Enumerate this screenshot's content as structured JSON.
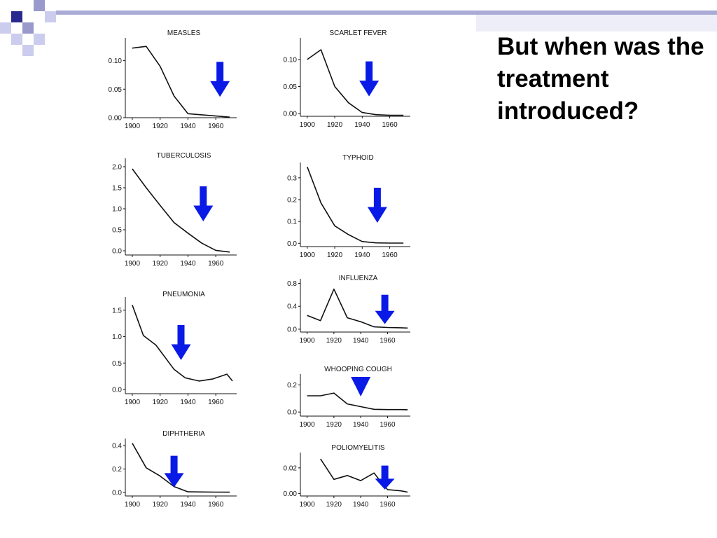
{
  "slide": {
    "heading": "But when was the treatment introduced?",
    "colors": {
      "decor_dark": "#2a2a8e",
      "decor_mid": "#9999cc",
      "decor_light": "#ccccee",
      "arrow": "#0a1ae6",
      "line": "#111111"
    }
  },
  "chart_data": [
    {
      "type": "line",
      "title": "MEASLES",
      "x": [
        1900,
        1910,
        1920,
        1930,
        1940,
        1950,
        1960,
        1970
      ],
      "series": [
        {
          "values": [
            0.122,
            0.125,
            0.09,
            0.038,
            0.007,
            0.005,
            0.003,
            0.001
          ]
        }
      ],
      "xlim": [
        1895,
        1975
      ],
      "ylim": [
        0,
        0.14
      ],
      "xticks": [
        1900,
        1920,
        1940,
        1960
      ],
      "xtick_labels": [
        "1900",
        "1920",
        "1940",
        "1960"
      ],
      "yticks": [
        0,
        0.05,
        0.1
      ],
      "ytick_labels": [
        "0.00",
        "0.05",
        "0.10"
      ],
      "arrow_year": 1963,
      "arrow_style": "arrow"
    },
    {
      "type": "line",
      "title": "SCARLET FEVER",
      "x": [
        1900,
        1910,
        1920,
        1930,
        1940,
        1950,
        1960,
        1970
      ],
      "series": [
        {
          "values": [
            0.1,
            0.118,
            0.05,
            0.02,
            0.002,
            -0.002,
            -0.003,
            -0.003
          ]
        }
      ],
      "xlim": [
        1895,
        1975
      ],
      "ylim": [
        -0.005,
        0.14
      ],
      "xticks": [
        1900,
        1920,
        1940,
        1960
      ],
      "xtick_labels": [
        "1900",
        "1920",
        "1940",
        "1960"
      ],
      "yticks": [
        0,
        0.05,
        0.1
      ],
      "ytick_labels": [
        "0.00",
        "0.05",
        "0.10"
      ],
      "arrow_year": 1945,
      "arrow_style": "arrow"
    },
    {
      "type": "line",
      "title": "TUBERCULOSIS",
      "x": [
        1900,
        1910,
        1920,
        1930,
        1940,
        1950,
        1960,
        1970
      ],
      "series": [
        {
          "values": [
            1.95,
            1.5,
            1.08,
            0.67,
            0.42,
            0.18,
            0.01,
            -0.03
          ]
        }
      ],
      "xlim": [
        1895,
        1975
      ],
      "ylim": [
        -0.1,
        2.2
      ],
      "xticks": [
        1900,
        1920,
        1940,
        1960
      ],
      "xtick_labels": [
        "1900",
        "1920",
        "1940",
        "1960"
      ],
      "yticks": [
        0,
        0.5,
        1.0,
        1.5,
        2.0
      ],
      "ytick_labels": [
        "0.0",
        "0.5",
        "1.0",
        "1.5",
        "2.0"
      ],
      "arrow_year": 1951,
      "arrow_style": "arrow"
    },
    {
      "type": "line",
      "title": "TYPHOID",
      "x": [
        1900,
        1910,
        1920,
        1930,
        1940,
        1950,
        1960,
        1970
      ],
      "series": [
        {
          "values": [
            0.35,
            0.185,
            0.08,
            0.04,
            0.008,
            0.002,
            0.001,
            0.001
          ]
        }
      ],
      "xlim": [
        1895,
        1975
      ],
      "ylim": [
        -0.015,
        0.37
      ],
      "xticks": [
        1900,
        1920,
        1940,
        1960
      ],
      "xtick_labels": [
        "1900",
        "1920",
        "1940",
        "1960"
      ],
      "yticks": [
        0,
        0.1,
        0.2,
        0.3
      ],
      "ytick_labels": [
        "0.0",
        "0.1",
        "0.2",
        "0.3"
      ],
      "arrow_year": 1951,
      "arrow_style": "arrow"
    },
    {
      "type": "line",
      "title": "INFLUENZA",
      "x": [
        1900,
        1910,
        1920,
        1930,
        1940,
        1950,
        1960,
        1970,
        1975
      ],
      "series": [
        {
          "values": [
            0.24,
            0.15,
            0.7,
            0.2,
            0.13,
            0.04,
            0.03,
            0.025,
            0.02
          ]
        }
      ],
      "xlim": [
        1895,
        1977
      ],
      "ylim": [
        -0.05,
        0.88
      ],
      "xticks": [
        1900,
        1920,
        1940,
        1960
      ],
      "xtick_labels": [
        "1900",
        "1920",
        "1940",
        "1960"
      ],
      "yticks": [
        0,
        0.4,
        0.8
      ],
      "ytick_labels": [
        "0.0",
        "0.4",
        "0.8"
      ],
      "arrow_year": 1958,
      "arrow_style": "arrow"
    },
    {
      "type": "line",
      "title": "PNEUMONIA",
      "x": [
        1900,
        1908,
        1917,
        1930,
        1938,
        1948,
        1958,
        1968,
        1972
      ],
      "series": [
        {
          "values": [
            1.6,
            1.02,
            0.84,
            0.38,
            0.22,
            0.16,
            0.2,
            0.29,
            0.16
          ]
        }
      ],
      "xlim": [
        1895,
        1975
      ],
      "ylim": [
        -0.08,
        1.75
      ],
      "xticks": [
        1900,
        1920,
        1940,
        1960
      ],
      "xtick_labels": [
        "1900",
        "1920",
        "1940",
        "1960"
      ],
      "yticks": [
        0,
        0.5,
        1.0,
        1.5
      ],
      "ytick_labels": [
        "0.0",
        "0.5",
        "1.0",
        "1.5"
      ],
      "arrow_year": 1935,
      "arrow_style": "arrow"
    },
    {
      "type": "line",
      "title": "WHOOPING COUGH",
      "x": [
        1900,
        1910,
        1920,
        1930,
        1940,
        1950,
        1960,
        1970,
        1975
      ],
      "series": [
        {
          "values": [
            0.12,
            0.12,
            0.14,
            0.06,
            0.04,
            0.02,
            0.018,
            0.018,
            0.017
          ]
        }
      ],
      "xlim": [
        1895,
        1977
      ],
      "ylim": [
        -0.03,
        0.28
      ],
      "xticks": [
        1900,
        1920,
        1940,
        1960
      ],
      "xtick_labels": [
        "1900",
        "1920",
        "1940",
        "1960"
      ],
      "yticks": [
        0,
        0.2
      ],
      "ytick_labels": [
        "0.0",
        "0.2"
      ],
      "arrow_year": 1940,
      "arrow_style": "triangle"
    },
    {
      "type": "line",
      "title": "DIPHTHERIA",
      "x": [
        1900,
        1910,
        1920,
        1930,
        1940,
        1950,
        1960,
        1970
      ],
      "series": [
        {
          "values": [
            0.42,
            0.21,
            0.14,
            0.05,
            0.005,
            0.004,
            0.003,
            0.002
          ]
        }
      ],
      "xlim": [
        1895,
        1975
      ],
      "ylim": [
        -0.03,
        0.46
      ],
      "xticks": [
        1900,
        1920,
        1940,
        1960
      ],
      "xtick_labels": [
        "1900",
        "1920",
        "1940",
        "1960"
      ],
      "yticks": [
        0,
        0.2,
        0.4
      ],
      "ytick_labels": [
        "0.0",
        "0.2",
        "0.4"
      ],
      "arrow_year": 1930,
      "arrow_style": "arrow"
    },
    {
      "type": "line",
      "title": "POLIOMYELITIS",
      "x": [
        1910,
        1920,
        1930,
        1940,
        1950,
        1955,
        1960,
        1970,
        1975
      ],
      "series": [
        {
          "values": [
            0.027,
            0.011,
            0.014,
            0.01,
            0.016,
            0.009,
            0.003,
            0.002,
            0.001
          ]
        }
      ],
      "xlim": [
        1895,
        1977
      ],
      "ylim": [
        -0.002,
        0.032
      ],
      "xticks": [
        1900,
        1920,
        1940,
        1960
      ],
      "xtick_labels": [
        "1900",
        "1920",
        "1940",
        "1960"
      ],
      "yticks": [
        0,
        0.02
      ],
      "ytick_labels": [
        "0.00",
        "0.02"
      ],
      "arrow_year": 1958,
      "arrow_style": "arrow"
    }
  ]
}
